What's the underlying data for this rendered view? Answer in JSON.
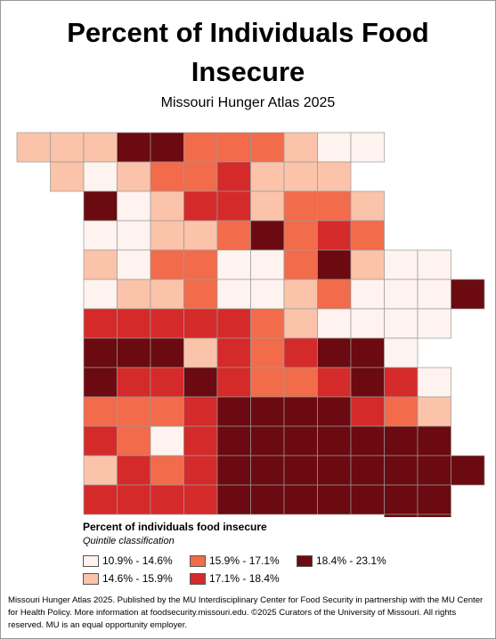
{
  "title": "Percent of Individuals Food Insecure",
  "subtitle": "Missouri Hunger Atlas 2025",
  "legend": {
    "title": "Percent of individuals food insecure",
    "subtitle": "Quintile classification",
    "classes": [
      {
        "label": "10.9% - 14.6%",
        "color": "#fef3ee"
      },
      {
        "label": "14.6% - 15.9%",
        "color": "#fbc3aa"
      },
      {
        "label": "15.9% - 17.1%",
        "color": "#f26b4b"
      },
      {
        "label": "17.1% - 18.4%",
        "color": "#d52a2a"
      },
      {
        "label": "18.4% - 23.1%",
        "color": "#6b0a10"
      }
    ]
  },
  "counties": [
    [
      1,
      1,
      1,
      4,
      4,
      2,
      2,
      2,
      1,
      0,
      0,
      null,
      null,
      null
    ],
    [
      null,
      1,
      0,
      1,
      2,
      2,
      3,
      1,
      1,
      1,
      null,
      null,
      null,
      null
    ],
    [
      null,
      null,
      4,
      0,
      1,
      3,
      3,
      1,
      2,
      2,
      1,
      null,
      null,
      null
    ],
    [
      null,
      null,
      0,
      0,
      1,
      1,
      2,
      4,
      2,
      3,
      2,
      null,
      null,
      null
    ],
    [
      null,
      null,
      1,
      0,
      2,
      2,
      0,
      0,
      2,
      4,
      1,
      0,
      0,
      null
    ],
    [
      null,
      null,
      0,
      1,
      1,
      2,
      0,
      0,
      1,
      2,
      0,
      0,
      0,
      4
    ],
    [
      null,
      null,
      3,
      3,
      3,
      3,
      3,
      2,
      1,
      0,
      0,
      0,
      0,
      null
    ],
    [
      null,
      null,
      4,
      4,
      4,
      1,
      3,
      2,
      3,
      4,
      4,
      0,
      null,
      null
    ],
    [
      null,
      null,
      4,
      3,
      3,
      4,
      3,
      2,
      2,
      3,
      4,
      3,
      0,
      null
    ],
    [
      null,
      null,
      2,
      2,
      2,
      3,
      4,
      4,
      4,
      4,
      3,
      2,
      1,
      null
    ],
    [
      null,
      null,
      3,
      2,
      0,
      3,
      4,
      4,
      4,
      4,
      4,
      4,
      4,
      null
    ],
    [
      null,
      null,
      1,
      3,
      2,
      3,
      4,
      4,
      4,
      4,
      4,
      4,
      4,
      4
    ],
    [
      null,
      null,
      3,
      3,
      3,
      3,
      4,
      4,
      4,
      4,
      4,
      4,
      4,
      null
    ],
    [
      null,
      null,
      null,
      null,
      null,
      null,
      null,
      null,
      null,
      null,
      null,
      4,
      4,
      null
    ]
  ],
  "footer": "Missouri Hunger Atlas 2025. Published by the MU Interdisciplinary Center for Food Security in partnership with the MU Center for Health Policy. More information at foodsecurity.missouri.edu. ©2025 Curators of the University of Missouri. All rights reserved. MU is an equal opportunity employer."
}
